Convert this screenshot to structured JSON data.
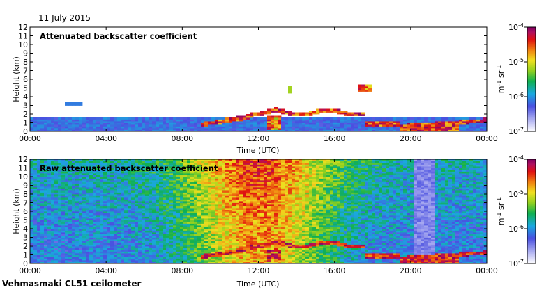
{
  "header": {
    "date": "11 July 2015"
  },
  "footer": {
    "station": "Vehmasmaki CL51 ceilometer"
  },
  "chart_data": [
    {
      "type": "heatmap",
      "title": "Attenuated backscatter coefficient",
      "xlabel": "Time (UTC)",
      "ylabel": "Height (km)",
      "xlim": [
        0,
        24
      ],
      "ylim": [
        0,
        12
      ],
      "x_ticks": [
        "00:00",
        "04:00",
        "08:00",
        "12:00",
        "16:00",
        "20:00",
        "00:00"
      ],
      "y_ticks": [
        "0",
        "1",
        "2",
        "3",
        "4",
        "5",
        "6",
        "7",
        "8",
        "9",
        "10",
        "11",
        "12"
      ],
      "colorbar": {
        "label": "m-1 sr-1",
        "ticks": [
          "10-4",
          "10-5",
          "10-6",
          "10-7"
        ],
        "scale": "log",
        "range": [
          1e-07,
          0.0001
        ]
      },
      "features": [
        {
          "name": "boundary-layer aerosol",
          "x": [
            0,
            24
          ],
          "top_km": [
            1.6,
            1.7
          ],
          "level": 0.3
        },
        {
          "name": "cloud base layer",
          "x": [
            9,
            23.9
          ],
          "height_km": [
            0.8,
            2.6
          ],
          "level": 0.9
        },
        {
          "name": "high cloud fragments",
          "x": [
            13.6,
            17.8
          ],
          "height_km": [
            4.7,
            5.4
          ],
          "level": 0.7
        }
      ]
    },
    {
      "type": "heatmap",
      "title": "Raw attenuated backscatter coefficient",
      "xlabel": "Time (UTC)",
      "ylabel": "Height (km)",
      "xlim": [
        0,
        24
      ],
      "ylim": [
        0,
        12
      ],
      "x_ticks": [
        "00:00",
        "04:00",
        "08:00",
        "12:00",
        "16:00",
        "20:00",
        "00:00"
      ],
      "y_ticks": [
        "0",
        "1",
        "2",
        "3",
        "4",
        "5",
        "6",
        "7",
        "8",
        "9",
        "10",
        "11",
        "12"
      ],
      "colorbar": {
        "label": "m-1 sr-1",
        "ticks": [
          "10-4",
          "10-5",
          "10-6",
          "10-7"
        ],
        "scale": "log",
        "range": [
          1e-07,
          0.0001
        ]
      },
      "features": [
        {
          "name": "daytime solar background noise",
          "x": [
            7,
            19
          ],
          "peak_time": 12,
          "level": 0.85
        },
        {
          "name": "cloud base layer",
          "x": [
            9,
            23.9
          ],
          "height_km": [
            0.8,
            2.6
          ],
          "level": 0.9
        },
        {
          "name": "precipitation streaks",
          "x": [
            20.2,
            21.2
          ],
          "level": 0.2
        }
      ]
    }
  ]
}
